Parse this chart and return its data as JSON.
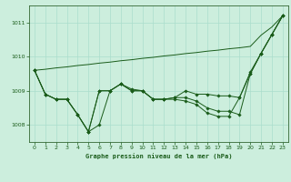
{
  "xlabel": "Graphe pression niveau de la mer (hPa)",
  "background_color": "#cceedd",
  "grid_color": "#aaddcc",
  "line_color": "#1a5c1a",
  "ylim": [
    1007.5,
    1011.5
  ],
  "xlim": [
    -0.5,
    23.5
  ],
  "yticks": [
    1008,
    1009,
    1010,
    1011
  ],
  "xticks": [
    0,
    1,
    2,
    3,
    4,
    5,
    6,
    7,
    8,
    9,
    10,
    11,
    12,
    13,
    14,
    15,
    16,
    17,
    18,
    19,
    20,
    21,
    22,
    23
  ],
  "y_smooth": [
    1009.6,
    1009.63,
    1009.67,
    1009.7,
    1009.74,
    1009.77,
    1009.81,
    1009.84,
    1009.88,
    1009.91,
    1009.95,
    1009.98,
    1010.02,
    1010.05,
    1010.09,
    1010.12,
    1010.16,
    1010.19,
    1010.23,
    1010.26,
    1010.3,
    1010.63,
    1010.87,
    1011.2
  ],
  "y_main": [
    1009.6,
    1008.9,
    1008.75,
    1008.75,
    1008.3,
    1007.8,
    1009.0,
    1009.0,
    1009.2,
    1009.0,
    1009.0,
    1008.75,
    1008.75,
    1008.8,
    1008.8,
    1008.7,
    1008.5,
    1008.4,
    1008.4,
    1008.3,
    1009.5,
    1010.1,
    1010.65,
    1011.2
  ],
  "y_second": [
    1009.6,
    1008.9,
    1008.75,
    1008.75,
    1008.3,
    1007.8,
    1009.0,
    1009.0,
    1009.2,
    1009.05,
    1009.0,
    1008.75,
    1008.75,
    1008.8,
    1009.0,
    1008.9,
    1008.9,
    1008.85,
    1008.85,
    1008.8,
    1009.55,
    1010.1,
    1010.65,
    1011.2
  ],
  "y_third": [
    1009.6,
    1008.9,
    1008.75,
    1008.75,
    1008.3,
    1007.8,
    1008.0,
    1009.0,
    1009.2,
    1009.0,
    1009.0,
    1008.75,
    1008.75,
    1008.75,
    1008.7,
    1008.6,
    1008.35,
    1008.25,
    1008.25,
    1008.8,
    1009.5,
    1010.1,
    1010.65,
    1011.2
  ]
}
